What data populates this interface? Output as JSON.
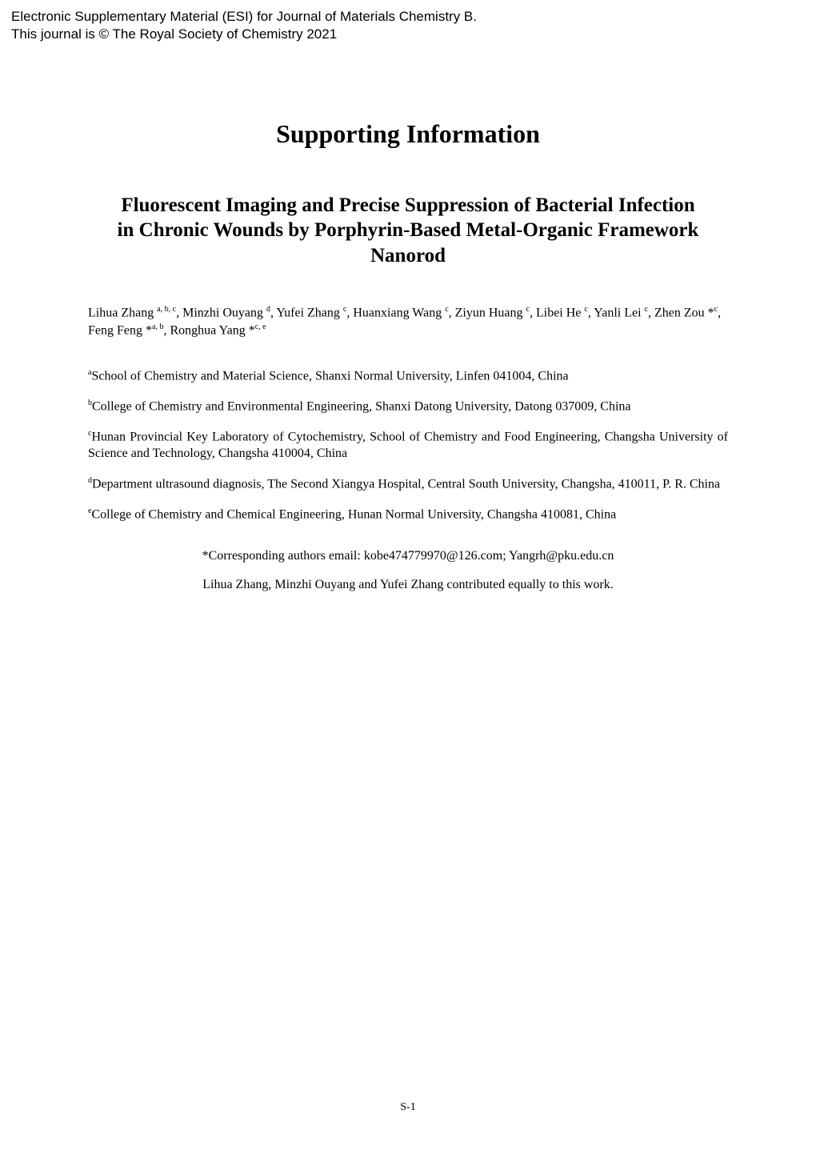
{
  "esi": {
    "line1": "Electronic Supplementary Material (ESI) for Journal of Materials Chemistry B.",
    "line2": "This journal is © The Royal Society of Chemistry 2021"
  },
  "title": "Supporting Information",
  "subtitle": "Fluorescent Imaging and Precise Suppression of Bacterial Infection in Chronic Wounds by Porphyrin-Based Metal-Organic Framework Nanorod",
  "authors": {
    "p1_name1": "Lihua Zhang ",
    "p1_sup1": "a, b, c",
    "p1_sep1": ", ",
    "p1_name2": "Minzhi Ouyang ",
    "p1_sup2": "d",
    "p1_sep2": ", Yufei Zhang ",
    "p1_sup3": "c",
    "p1_sep3": ", Huanxiang Wang ",
    "p1_sup4": "c",
    "p1_sep4": ", Ziyun Huang ",
    "p1_sup5": "c",
    "p1_sep5": ", Libei He ",
    "p1_sup6": "c",
    "p1_sep6": ", Yanli Lei ",
    "p1_sup7": "c",
    "p1_sep7": ", ",
    "p1_name8": "Zhen Zou *",
    "p1_sup8": "c",
    "p1_sep8": ", Feng Feng *",
    "p1_sup9": "a, b",
    "p1_sep9": ", Ronghua Yang *",
    "p1_sup10": "c, e"
  },
  "affiliations": {
    "a_sup": "a",
    "a_text": "School of Chemistry and Material Science, Shanxi Normal University, Linfen 041004, China",
    "b_sup": "b",
    "b_text": "College of Chemistry and Environmental Engineering, Shanxi Datong University, Datong 037009, China",
    "c_sup": "c",
    "c_text": "Hunan Provincial Key Laboratory of Cytochemistry, School of Chemistry and Food Engineering, Changsha University of Science and Technology, Changsha 410004, China",
    "d_sup": "d",
    "d_text": "Department ultrasound diagnosis, The Second Xiangya Hospital, Central South University, Changsha, 410011, P. R. China",
    "e_sup": "e",
    "e_text": "College of Chemistry and Chemical Engineering, Hunan Normal University, Changsha 410081, China"
  },
  "corresponding": "*Corresponding authors email: kobe474779970@126.com; Yangrh@pku.edu.cn",
  "contribution": "Lihua Zhang, Minzhi Ouyang and Yufei Zhang contributed equally to this work.",
  "page_number": "S-1"
}
